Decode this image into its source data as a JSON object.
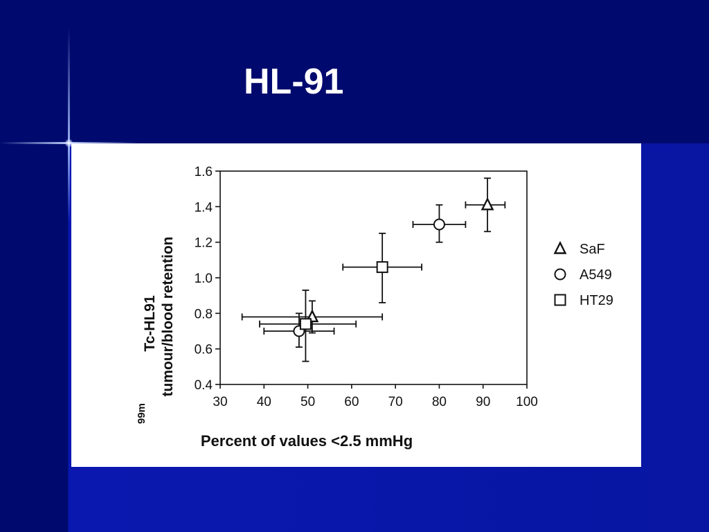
{
  "slide": {
    "title": "HL-91"
  },
  "chart_data": {
    "type": "scatter",
    "xlabel": "Percent of values <2.5 mmHg",
    "ylabel_sup": "99m",
    "ylabel_line1": "Tc-HL91",
    "ylabel_line2": "tumour/blood retention",
    "xlim": [
      30,
      100
    ],
    "ylim": [
      0.4,
      1.6
    ],
    "xticks": [
      30,
      40,
      50,
      60,
      70,
      80,
      90,
      100
    ],
    "yticks": [
      "0.4",
      "0.6",
      "0.8",
      "1.0",
      "1.2",
      "1.4",
      "1.6"
    ],
    "grid": false,
    "legend_position": "right",
    "series": [
      {
        "name": "SaF",
        "marker": "triangle",
        "points": [
          {
            "x": 51,
            "y": 0.78,
            "xerr": [
              35,
              67
            ],
            "yerr": [
              0.69,
              0.87
            ]
          },
          {
            "x": 91,
            "y": 1.41,
            "xerr": [
              86,
              95
            ],
            "yerr": [
              1.26,
              1.56
            ]
          }
        ]
      },
      {
        "name": "A549",
        "marker": "circle",
        "points": [
          {
            "x": 48,
            "y": 0.7,
            "xerr": [
              40,
              56
            ],
            "yerr": [
              0.61,
              0.8
            ]
          },
          {
            "x": 80,
            "y": 1.3,
            "xerr": [
              74,
              86
            ],
            "yerr": [
              1.2,
              1.41
            ]
          }
        ]
      },
      {
        "name": "HT29",
        "marker": "square",
        "points": [
          {
            "x": 49.5,
            "y": 0.74,
            "xerr": [
              39,
              61
            ],
            "yerr": [
              0.53,
              0.93
            ]
          },
          {
            "x": 67,
            "y": 1.06,
            "xerr": [
              58,
              76
            ],
            "yerr": [
              0.86,
              1.25
            ]
          }
        ]
      }
    ]
  }
}
